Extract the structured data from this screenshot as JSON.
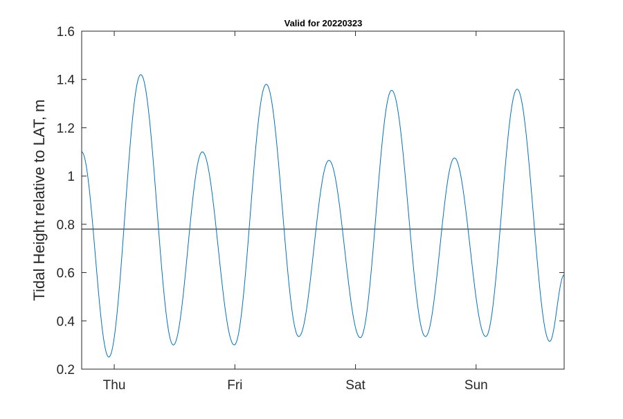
{
  "chart_data": {
    "type": "line",
    "title": "Valid for 20220323",
    "xlabel": "",
    "ylabel": "Tidal Height relative to LAT, m",
    "x_unit": "days",
    "xlim": [
      0,
      4
    ],
    "ylim": [
      0.2,
      1.6
    ],
    "yticks": [
      0.2,
      0.4,
      0.6,
      0.8,
      1,
      1.2,
      1.4,
      1.6
    ],
    "ytick_labels": [
      "0.2",
      "0.4",
      "0.6",
      "0.8",
      "1",
      "1.2",
      "1.4",
      "1.6"
    ],
    "xticks": [
      0.27,
      1.27,
      2.27,
      3.27
    ],
    "xtick_labels": [
      "Thu",
      "Fri",
      "Sat",
      "Sun"
    ],
    "reference_line": {
      "y": 0.78
    },
    "grid": false,
    "series": [
      {
        "color": "#0072BD",
        "turning_points": [
          {
            "x": 0.0,
            "y": 1.1
          },
          {
            "x": 0.225,
            "y": 0.25
          },
          {
            "x": 0.49,
            "y": 1.42
          },
          {
            "x": 0.76,
            "y": 0.3
          },
          {
            "x": 1.0,
            "y": 1.1
          },
          {
            "x": 1.265,
            "y": 0.3
          },
          {
            "x": 1.53,
            "y": 1.38
          },
          {
            "x": 1.8,
            "y": 0.335
          },
          {
            "x": 2.05,
            "y": 1.065
          },
          {
            "x": 2.31,
            "y": 0.33
          },
          {
            "x": 2.57,
            "y": 1.355
          },
          {
            "x": 2.85,
            "y": 0.335
          },
          {
            "x": 3.09,
            "y": 1.075
          },
          {
            "x": 3.35,
            "y": 0.335
          },
          {
            "x": 3.61,
            "y": 1.36
          },
          {
            "x": 3.88,
            "y": 0.315
          },
          {
            "x": 4.0,
            "y": 0.59
          }
        ]
      }
    ]
  }
}
